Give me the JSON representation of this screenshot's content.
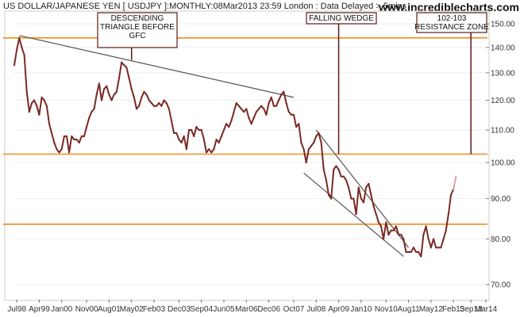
{
  "header": {
    "title": "US DOLLAR/JAPANESE YEN [ USDJPY ]:MONTHLY:08Mar2013 23:59 London : Data Delayed > 5mins",
    "site": "www.incrediblecharts.com"
  },
  "annotations": [
    {
      "lines": [
        "DESCENDING",
        "TRIANGLE BEFORE",
        "GFC"
      ]
    },
    {
      "lines": [
        "FALLING WEDGE"
      ]
    },
    {
      "lines": [
        "102-103",
        "RESISTANCE ZONE"
      ]
    }
  ],
  "chart_data": {
    "type": "line",
    "y_scale": "log",
    "ylim": [
      67,
      155
    ],
    "xlim": [
      "1998-06",
      "2014-03"
    ],
    "y_ticks": [
      70,
      80,
      90,
      100,
      110,
      120,
      130,
      140,
      150
    ],
    "x_ticks": [
      "Jul98",
      "Apr99",
      "Jan00",
      "Nov00",
      "Aug01",
      "May02",
      "Feb03",
      "Dec03",
      "Sep04",
      "Jun05",
      "Mar06",
      "Dec06",
      "Oct07",
      "Jul08",
      "Apr09",
      "Jan10",
      "Nov10",
      "Aug11",
      "May12",
      "Feb13",
      "Sep13",
      "Mar14"
    ],
    "x_tick_dates": [
      "1998-07",
      "1999-04",
      "2000-01",
      "2000-11",
      "2001-08",
      "2002-05",
      "2003-02",
      "2003-12",
      "2004-09",
      "2005-06",
      "2006-03",
      "2006-12",
      "2007-10",
      "2008-07",
      "2009-04",
      "2010-01",
      "2010-11",
      "2011-08",
      "2012-05",
      "2013-02",
      "2013-09",
      "2014-03"
    ],
    "series": [
      {
        "color": "#7a2a24",
        "points": [
          [
            "1998-06",
            133
          ],
          [
            "1998-07",
            139
          ],
          [
            "1998-08",
            144
          ],
          [
            "1998-09",
            140
          ],
          [
            "1998-10",
            137
          ],
          [
            "1998-11",
            123
          ],
          [
            "1998-12",
            116
          ],
          [
            "1999-01",
            119
          ],
          [
            "1999-02",
            120
          ],
          [
            "1999-03",
            118
          ],
          [
            "1999-04",
            115
          ],
          [
            "1999-05",
            121
          ],
          [
            "1999-06",
            120
          ],
          [
            "1999-07",
            118
          ],
          [
            "1999-08",
            112
          ],
          [
            "1999-09",
            109
          ],
          [
            "1999-10",
            106
          ],
          [
            "1999-11",
            104
          ],
          [
            "1999-12",
            103
          ],
          [
            "2000-01",
            104
          ],
          [
            "2000-02",
            108
          ],
          [
            "2000-03",
            108
          ],
          [
            "2000-04",
            103
          ],
          [
            "2000-05",
            108
          ],
          [
            "2000-06",
            107
          ],
          [
            "2000-07",
            107
          ],
          [
            "2000-08",
            106
          ],
          [
            "2000-09",
            108
          ],
          [
            "2000-10",
            108
          ],
          [
            "2000-11",
            111
          ],
          [
            "2000-12",
            114
          ],
          [
            "2001-01",
            116
          ],
          [
            "2001-02",
            117
          ],
          [
            "2001-03",
            122
          ],
          [
            "2001-04",
            126
          ],
          [
            "2001-05",
            120
          ],
          [
            "2001-06",
            124
          ],
          [
            "2001-07",
            125
          ],
          [
            "2001-08",
            122
          ],
          [
            "2001-09",
            120
          ],
          [
            "2001-10",
            122
          ],
          [
            "2001-11",
            123
          ],
          [
            "2001-12",
            128
          ],
          [
            "2002-01",
            134
          ],
          [
            "2002-02",
            133
          ],
          [
            "2002-03",
            132
          ],
          [
            "2002-04",
            128
          ],
          [
            "2002-05",
            124
          ],
          [
            "2002-06",
            121
          ],
          [
            "2002-07",
            117
          ],
          [
            "2002-08",
            118
          ],
          [
            "2002-09",
            121
          ],
          [
            "2002-10",
            123
          ],
          [
            "2002-11",
            122
          ],
          [
            "2002-12",
            120
          ],
          [
            "2003-01",
            119
          ],
          [
            "2003-02",
            118
          ],
          [
            "2003-03",
            118
          ],
          [
            "2003-04",
            119
          ],
          [
            "2003-05",
            118
          ],
          [
            "2003-06",
            120
          ],
          [
            "2003-07",
            119
          ],
          [
            "2003-08",
            117
          ],
          [
            "2003-09",
            113
          ],
          [
            "2003-10",
            109
          ],
          [
            "2003-11",
            109
          ],
          [
            "2003-12",
            107
          ],
          [
            "2004-01",
            106
          ],
          [
            "2004-02",
            108
          ],
          [
            "2004-03",
            104
          ],
          [
            "2004-04",
            110
          ],
          [
            "2004-05",
            110
          ],
          [
            "2004-06",
            108
          ],
          [
            "2004-07",
            111
          ],
          [
            "2004-08",
            110
          ],
          [
            "2004-09",
            110
          ],
          [
            "2004-10",
            107
          ],
          [
            "2004-11",
            103
          ],
          [
            "2004-12",
            104
          ],
          [
            "2005-01",
            103
          ],
          [
            "2005-02",
            104
          ],
          [
            "2005-03",
            107
          ],
          [
            "2005-04",
            106
          ],
          [
            "2005-05",
            108
          ],
          [
            "2005-06",
            110
          ],
          [
            "2005-07",
            112
          ],
          [
            "2005-08",
            111
          ],
          [
            "2005-09",
            113
          ],
          [
            "2005-10",
            116
          ],
          [
            "2005-11",
            119
          ],
          [
            "2005-12",
            118
          ],
          [
            "2006-01",
            117
          ],
          [
            "2006-02",
            116
          ],
          [
            "2006-03",
            117
          ],
          [
            "2006-04",
            114
          ],
          [
            "2006-05",
            112
          ],
          [
            "2006-06",
            114
          ],
          [
            "2006-07",
            116
          ],
          [
            "2006-08",
            117
          ],
          [
            "2006-09",
            118
          ],
          [
            "2006-10",
            117
          ],
          [
            "2006-11",
            115
          ],
          [
            "2006-12",
            119
          ],
          [
            "2007-01",
            121
          ],
          [
            "2007-02",
            118
          ],
          [
            "2007-03",
            118
          ],
          [
            "2007-04",
            120
          ],
          [
            "2007-05",
            122
          ],
          [
            "2007-06",
            123
          ],
          [
            "2007-07",
            119
          ],
          [
            "2007-08",
            116
          ],
          [
            "2007-09",
            115
          ],
          [
            "2007-10",
            115
          ],
          [
            "2007-11",
            111
          ],
          [
            "2007-12",
            112
          ],
          [
            "2008-01",
            106
          ],
          [
            "2008-02",
            104
          ],
          [
            "2008-03",
            100
          ],
          [
            "2008-04",
            104
          ],
          [
            "2008-05",
            105
          ],
          [
            "2008-06",
            106
          ],
          [
            "2008-07",
            108
          ],
          [
            "2008-08",
            109
          ],
          [
            "2008-09",
            106
          ],
          [
            "2008-10",
            98
          ],
          [
            "2008-11",
            95
          ],
          [
            "2008-12",
            91
          ],
          [
            "2009-01",
            90
          ],
          [
            "2009-02",
            98
          ],
          [
            "2009-03",
            99
          ],
          [
            "2009-04",
            98
          ],
          [
            "2009-05",
            96
          ],
          [
            "2009-06",
            96
          ],
          [
            "2009-07",
            95
          ],
          [
            "2009-08",
            93
          ],
          [
            "2009-09",
            90
          ],
          [
            "2009-10",
            90
          ],
          [
            "2009-11",
            86
          ],
          [
            "2009-12",
            93
          ],
          [
            "2010-01",
            90
          ],
          [
            "2010-02",
            89
          ],
          [
            "2010-03",
            93
          ],
          [
            "2010-04",
            94
          ],
          [
            "2010-05",
            91
          ],
          [
            "2010-06",
            88
          ],
          [
            "2010-07",
            86
          ],
          [
            "2010-08",
            84
          ],
          [
            "2010-09",
            83
          ],
          [
            "2010-10",
            80
          ],
          [
            "2010-11",
            84
          ],
          [
            "2010-12",
            81
          ],
          [
            "2011-01",
            82
          ],
          [
            "2011-02",
            82
          ],
          [
            "2011-03",
            83
          ],
          [
            "2011-04",
            81
          ],
          [
            "2011-05",
            81
          ],
          [
            "2011-06",
            80
          ],
          [
            "2011-07",
            77
          ],
          [
            "2011-08",
            77
          ],
          [
            "2011-09",
            77
          ],
          [
            "2011-10",
            78
          ],
          [
            "2011-11",
            77
          ],
          [
            "2011-12",
            77
          ],
          [
            "2012-01",
            76
          ],
          [
            "2012-02",
            81
          ],
          [
            "2012-03",
            83
          ],
          [
            "2012-04",
            80
          ],
          [
            "2012-05",
            78
          ],
          [
            "2012-06",
            80
          ],
          [
            "2012-07",
            78
          ],
          [
            "2012-08",
            78
          ],
          [
            "2012-09",
            78
          ],
          [
            "2012-10",
            80
          ],
          [
            "2012-11",
            82
          ],
          [
            "2012-12",
            86
          ],
          [
            "2013-01",
            91
          ],
          [
            "2013-02",
            92.5
          ]
        ]
      },
      {
        "color": "#e0a0a0",
        "points": [
          [
            "2013-02",
            92.5
          ],
          [
            "2013-03",
            96
          ]
        ]
      }
    ],
    "horizontal_lines": [
      {
        "y": 144,
        "color": "#f28c1e"
      },
      {
        "y": 102.5,
        "color": "#f28c1e"
      },
      {
        "y": 83.5,
        "color": "#f28c1e"
      }
    ],
    "trend_lines": [
      {
        "from": [
          "1998-08",
          145
        ],
        "to": [
          "2007-10",
          121
        ],
        "color": "#555555"
      },
      {
        "from": [
          "2008-07",
          110
        ],
        "to": [
          "2011-08",
          78
        ],
        "color": "#555555"
      },
      {
        "from": [
          "2008-02",
          97
        ],
        "to": [
          "2011-06",
          76
        ],
        "color": "#555555"
      }
    ],
    "annotation_pointers": [
      {
        "date": "2002-05",
        "y": 135
      },
      {
        "date": "2009-04",
        "y": 102.5
      },
      {
        "date": "2013-09",
        "y": 102.5
      }
    ]
  }
}
